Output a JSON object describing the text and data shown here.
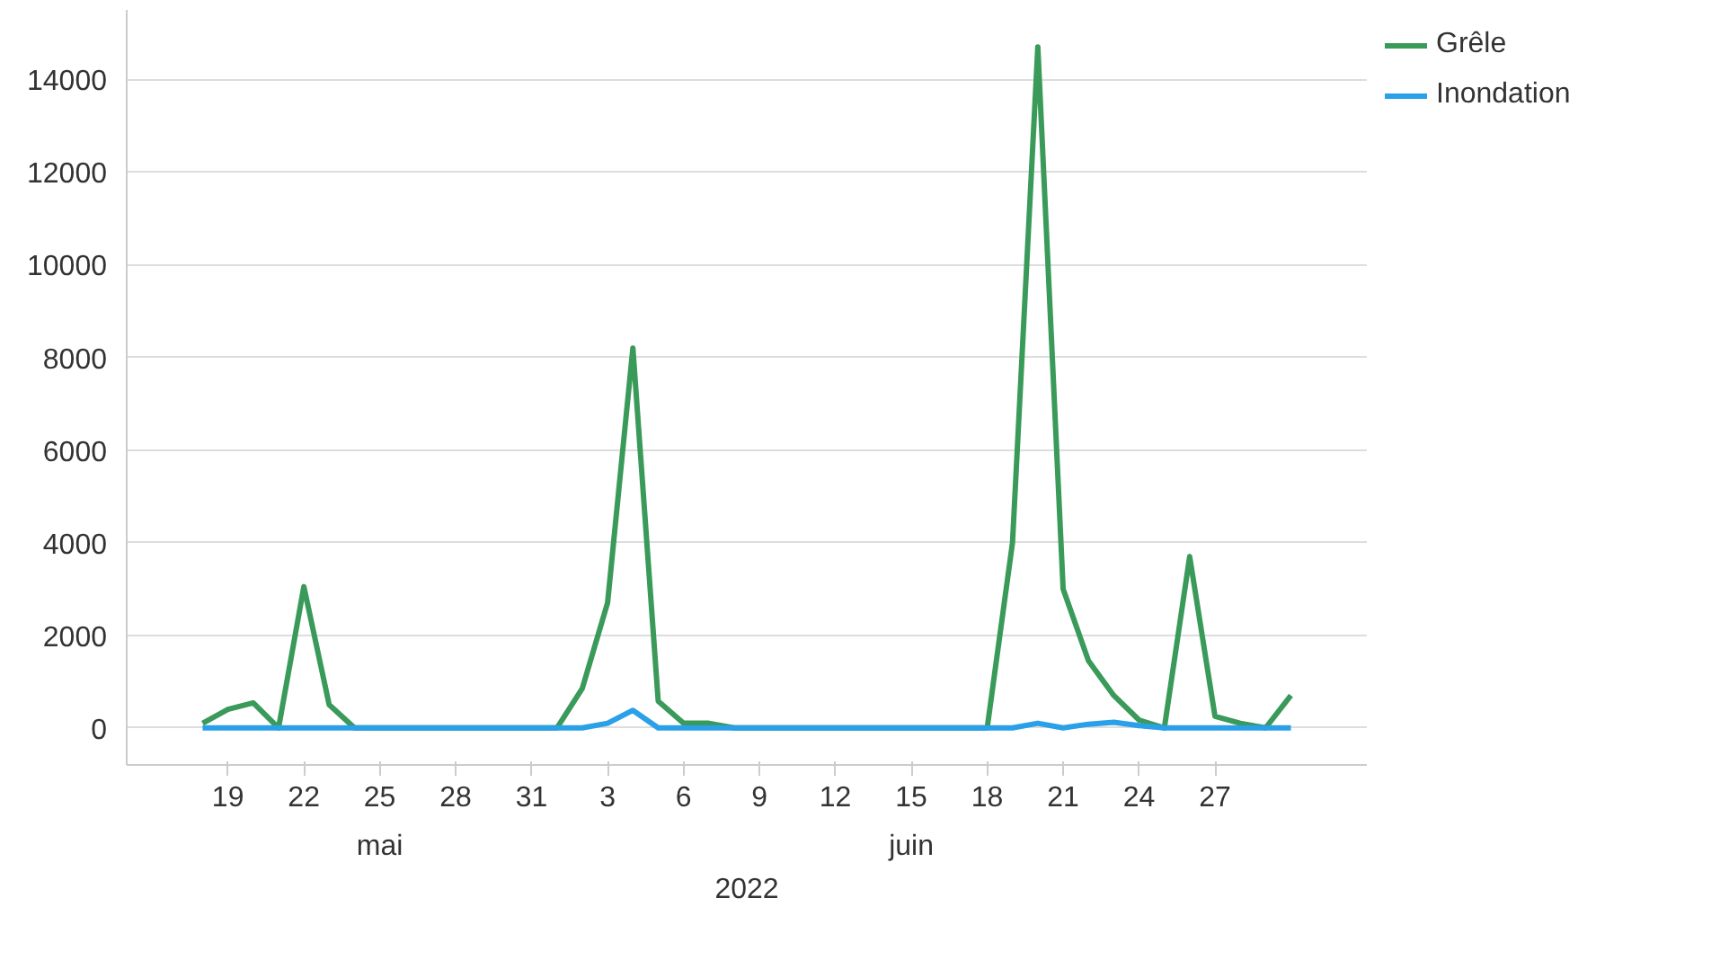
{
  "chart_data": {
    "type": "line",
    "xlabel": "2022",
    "x": [
      "2022-05-18",
      "2022-05-19",
      "2022-05-20",
      "2022-05-21",
      "2022-05-22",
      "2022-05-23",
      "2022-05-24",
      "2022-05-25",
      "2022-05-26",
      "2022-05-27",
      "2022-05-28",
      "2022-05-29",
      "2022-05-30",
      "2022-05-31",
      "2022-06-01",
      "2022-06-02",
      "2022-06-03",
      "2022-06-04",
      "2022-06-05",
      "2022-06-06",
      "2022-06-07",
      "2022-06-08",
      "2022-06-09",
      "2022-06-10",
      "2022-06-11",
      "2022-06-12",
      "2022-06-13",
      "2022-06-14",
      "2022-06-15",
      "2022-06-16",
      "2022-06-17",
      "2022-06-18",
      "2022-06-19",
      "2022-06-20",
      "2022-06-21",
      "2022-06-22",
      "2022-06-23",
      "2022-06-24",
      "2022-06-25",
      "2022-06-26",
      "2022-06-27",
      "2022-06-28",
      "2022-06-29",
      "2022-06-30"
    ],
    "series": [
      {
        "name": "Grêle",
        "color": "#3a9a5a",
        "values": [
          100,
          400,
          540,
          0,
          3050,
          500,
          0,
          0,
          0,
          0,
          0,
          0,
          0,
          0,
          0,
          850,
          2700,
          8200,
          580,
          100,
          100,
          0,
          0,
          0,
          0,
          0,
          0,
          0,
          0,
          0,
          0,
          0,
          4000,
          14700,
          3000,
          1450,
          700,
          170,
          0,
          3700,
          250,
          100,
          0,
          700
        ]
      },
      {
        "name": "Inondation",
        "color": "#2aa0e8",
        "values": [
          0,
          0,
          0,
          0,
          0,
          0,
          0,
          0,
          0,
          0,
          0,
          0,
          0,
          0,
          0,
          0,
          100,
          380,
          0,
          0,
          0,
          0,
          0,
          0,
          0,
          0,
          0,
          0,
          0,
          0,
          0,
          0,
          0,
          100,
          0,
          80,
          120,
          50,
          0,
          0,
          0,
          0,
          0,
          0
        ]
      }
    ],
    "annotations": [
      "mai",
      "juin"
    ],
    "xlim": [
      "2022-05-15",
      "2022-07-03"
    ],
    "xticks": [
      {
        "value": "2022-05-19",
        "label": "19"
      },
      {
        "value": "2022-05-22",
        "label": "22"
      },
      {
        "value": "2022-05-25",
        "label": "25"
      },
      {
        "value": "2022-05-28",
        "label": "28"
      },
      {
        "value": "2022-05-31",
        "label": "31"
      },
      {
        "value": "2022-06-03",
        "label": "3"
      },
      {
        "value": "2022-06-06",
        "label": "6"
      },
      {
        "value": "2022-06-09",
        "label": "9"
      },
      {
        "value": "2022-06-12",
        "label": "12"
      },
      {
        "value": "2022-06-15",
        "label": "15"
      },
      {
        "value": "2022-06-18",
        "label": "18"
      },
      {
        "value": "2022-06-21",
        "label": "21"
      },
      {
        "value": "2022-06-24",
        "label": "24"
      },
      {
        "value": "2022-06-27",
        "label": "27"
      }
    ],
    "ylim": [
      -800,
      15500
    ],
    "yticks": [
      0,
      2000,
      4000,
      6000,
      8000,
      10000,
      12000,
      14000
    ],
    "grid": "y",
    "legend": "top right",
    "marker": "none",
    "line_style": "solid"
  }
}
